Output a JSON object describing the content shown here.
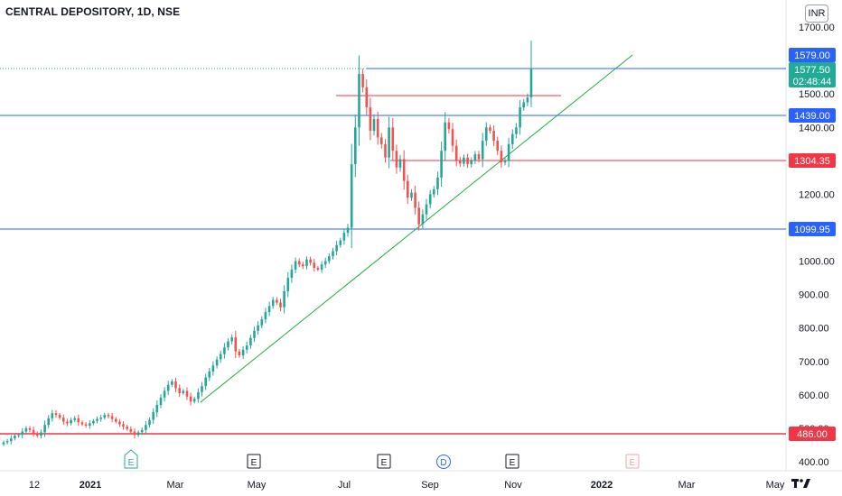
{
  "header": {
    "title": "CENTRAL DEPOSITORY, 1D, NSE",
    "currency": "INR"
  },
  "colors": {
    "up": "#26a69a",
    "down": "#ef5350",
    "blue_line": "#2962ff",
    "red_line": "#f23645",
    "trend_line": "#22ab3f",
    "label_blue": "#2962ff",
    "label_red": "#f23645",
    "label_green": "#22ab94"
  },
  "price_labels": {
    "high": "1579.00",
    "last": "1577.50",
    "countdown": "02:48:44",
    "resist_1": "1439.00",
    "resist_2": "1304.35",
    "support_1": "1099.95",
    "support_2": "486.00"
  },
  "events": [
    {
      "letter": "E",
      "kind": "earnings-past-green"
    },
    {
      "letter": "E",
      "kind": "earnings-past"
    },
    {
      "letter": "E",
      "kind": "earnings-past"
    },
    {
      "letter": "D",
      "kind": "dividend"
    },
    {
      "letter": "E",
      "kind": "earnings-past"
    },
    {
      "letter": "E",
      "kind": "earnings-future"
    }
  ],
  "chart_data": {
    "type": "candlestick",
    "title": "CENTRAL DEPOSITORY, 1D, NSE",
    "ylim": [
      380,
      1730
    ],
    "y_ticks": [
      "400.00",
      "500.00",
      "600.00",
      "700.00",
      "800.00",
      "900.00",
      "1000.00",
      "1100.00",
      "1200.00",
      "1300.00",
      "1400.00",
      "1500.00",
      "1600.00",
      "1700.00"
    ],
    "x_ticks": [
      "12",
      "2021",
      "Mar",
      "May",
      "Jul",
      "Sep",
      "Nov",
      "2022",
      "Mar",
      "May"
    ],
    "x_ticks_bold": [
      "2021",
      "2022"
    ],
    "horizontal_lines": [
      {
        "price": 1577.5,
        "color": "blue",
        "style": "solid",
        "from": "Jul"
      },
      {
        "price": 1577.5,
        "color": "green",
        "style": "dotted"
      },
      {
        "price": 1490,
        "color": "red",
        "style": "solid",
        "segment": true
      },
      {
        "price": 1439.0,
        "color": "blue",
        "style": "solid"
      },
      {
        "price": 1304.35,
        "color": "red",
        "style": "solid"
      },
      {
        "price": 1099.95,
        "color": "blue",
        "style": "solid"
      },
      {
        "price": 486.0,
        "color": "red",
        "style": "solid"
      }
    ],
    "trendline": {
      "from": {
        "date": "Mar-2021",
        "price": 580
      },
      "to": {
        "date": "Dec-2021",
        "price": 1660
      }
    },
    "closes": [
      458,
      462,
      470,
      478,
      480,
      490,
      500,
      495,
      485,
      478,
      488,
      510,
      530,
      545,
      540,
      532,
      520,
      515,
      525,
      530,
      518,
      512,
      508,
      515,
      522,
      528,
      532,
      540,
      536,
      528,
      520,
      512,
      505,
      498,
      490,
      480,
      488,
      495,
      510,
      525,
      548,
      570,
      592,
      612,
      630,
      640,
      620,
      605,
      612,
      595,
      580,
      588,
      608,
      626,
      652,
      670,
      688,
      706,
      722,
      742,
      760,
      772,
      730,
      718,
      735,
      748,
      770,
      792,
      808,
      826,
      848,
      866,
      884,
      876,
      862,
      910,
      950,
      975,
      1000,
      990,
      985,
      1005,
      995,
      980,
      975,
      990,
      1000,
      1015,
      1030,
      1048,
      1062,
      1085,
      1100,
      1290,
      1400,
      1560,
      1520,
      1460,
      1390,
      1425,
      1370,
      1350,
      1310,
      1400,
      1330,
      1280,
      1305,
      1240,
      1190,
      1205,
      1160,
      1110,
      1140,
      1170,
      1200,
      1215,
      1250,
      1330,
      1415,
      1395,
      1345,
      1302,
      1292,
      1310,
      1290,
      1300,
      1320,
      1305,
      1360,
      1400,
      1390,
      1360,
      1330,
      1295,
      1300,
      1350,
      1380,
      1400,
      1460,
      1475,
      1490,
      1577
    ],
    "series": [
      {
        "name": "",
        "note": "daily OHLC candles, opens derived from previous close"
      }
    ]
  }
}
